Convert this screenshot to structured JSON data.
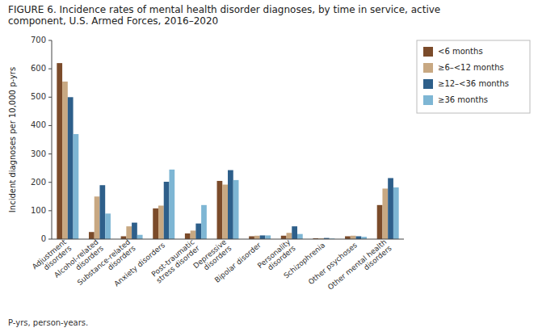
{
  "chart_data": {
    "type": "bar",
    "title": "FIGURE 6. Incidence rates of mental health disorder diagnoses, by time in service, active\ncomponent, U.S. Armed Forces, 2016–2020",
    "ylabel": "Incident diagnoses per 10,000 p-yrs",
    "annotations": [
      "P-yrs, person-years."
    ],
    "categories": [
      "Adjustment\ndisorders",
      "Alcohol-related\ndisorders",
      "Substance-related\ndisorders",
      "Anxiety disorders",
      "Post-traumatic\nstress disorder",
      "Depressive\ndisorders",
      "Bipolar disorder",
      "Personality\ndisorders",
      "Schizophrenia",
      "Other psychoses",
      "Other mental health\ndisorders"
    ],
    "series": [
      {
        "name": "<6 months",
        "color": "#7B4B2A",
        "values": [
          620,
          25,
          10,
          108,
          20,
          205,
          10,
          12,
          3,
          10,
          120
        ]
      },
      {
        "name": "≥6–<12 months",
        "color": "#C8A882",
        "values": [
          555,
          150,
          45,
          118,
          30,
          192,
          12,
          22,
          3,
          12,
          178
        ]
      },
      {
        "name": "≥12–<36 months",
        "color": "#2E5F8A",
        "values": [
          500,
          190,
          58,
          202,
          55,
          243,
          13,
          45,
          4,
          10,
          215
        ]
      },
      {
        "name": "≥36 months",
        "color": "#7EB6D4",
        "values": [
          370,
          90,
          15,
          245,
          120,
          208,
          13,
          18,
          2,
          8,
          182
        ]
      }
    ],
    "ylim": [
      0,
      700
    ],
    "yticks": [
      0,
      100,
      200,
      300,
      400,
      500,
      600,
      700
    ],
    "grid": false,
    "legend": "right"
  }
}
